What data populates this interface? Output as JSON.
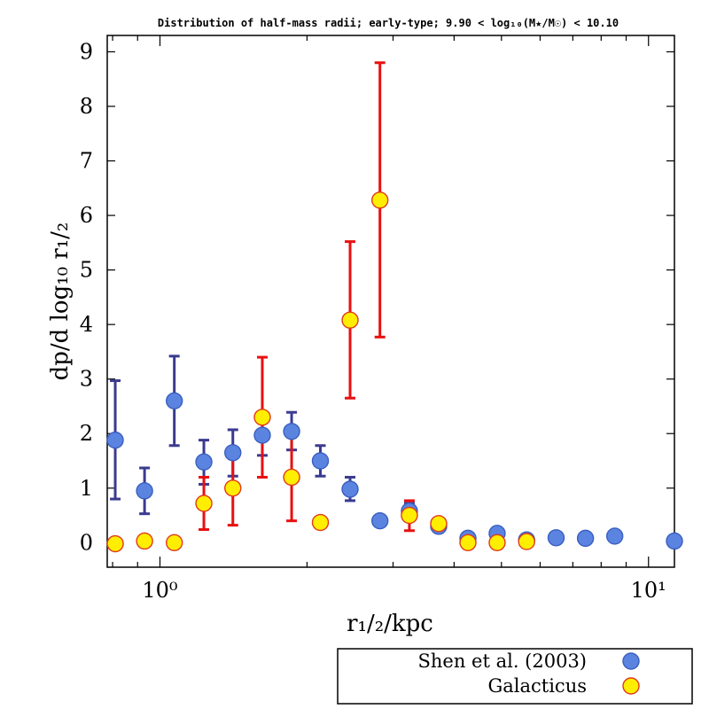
{
  "chart_data": {
    "type": "scatter",
    "title": "Distribution of half-mass radii; early-type; 9.90 < log₁₀(M★/M☉) < 10.10",
    "xlabel": "r₁/₂/kpc",
    "ylabel": "dp/d log₁₀ r₁/₂",
    "xscale": "log",
    "xlim": [
      0.78,
      11.3
    ],
    "ylim": [
      -0.45,
      9.3
    ],
    "x_ticks": [
      {
        "value": 1,
        "label": "10⁰"
      },
      {
        "value": 10,
        "label": "10¹"
      }
    ],
    "y_ticks": [
      0,
      1,
      2,
      3,
      4,
      5,
      6,
      7,
      8,
      9
    ],
    "legend_position": "bottom-right outside",
    "series": [
      {
        "name": "Shen et al. (2003)",
        "marker_color": "#5b84e0",
        "marker_edge": "#3a5fc0",
        "error_color": "#3a3a90",
        "points": [
          {
            "x": 0.81,
            "y": 1.88,
            "lo": 0.8,
            "hi": 2.97
          },
          {
            "x": 0.93,
            "y": 0.95,
            "lo": 0.53,
            "hi": 1.37
          },
          {
            "x": 1.07,
            "y": 2.6,
            "lo": 1.78,
            "hi": 3.42
          },
          {
            "x": 1.23,
            "y": 1.48,
            "lo": 1.07,
            "hi": 1.88
          },
          {
            "x": 1.41,
            "y": 1.65,
            "lo": 1.22,
            "hi": 2.07
          },
          {
            "x": 1.62,
            "y": 1.97,
            "lo": 1.6,
            "hi": 2.37
          },
          {
            "x": 1.86,
            "y": 2.04,
            "lo": 1.7,
            "hi": 2.39
          },
          {
            "x": 2.13,
            "y": 1.5,
            "lo": 1.22,
            "hi": 1.78
          },
          {
            "x": 2.45,
            "y": 0.98,
            "lo": 0.77,
            "hi": 1.2
          },
          {
            "x": 2.82,
            "y": 0.4,
            "lo": 0.3,
            "hi": 0.5
          },
          {
            "x": 3.24,
            "y": 0.58,
            "lo": 0.45,
            "hi": 0.72
          },
          {
            "x": 3.72,
            "y": 0.3,
            "lo": 0.22,
            "hi": 0.38
          },
          {
            "x": 4.27,
            "y": 0.08,
            "lo": 0.04,
            "hi": 0.12
          },
          {
            "x": 4.9,
            "y": 0.17,
            "lo": 0.12,
            "hi": 0.22
          },
          {
            "x": 5.63,
            "y": 0.05,
            "lo": 0.02,
            "hi": 0.08
          },
          {
            "x": 6.47,
            "y": 0.09,
            "lo": 0.06,
            "hi": 0.12
          },
          {
            "x": 7.43,
            "y": 0.08,
            "lo": 0.05,
            "hi": 0.11
          },
          {
            "x": 8.53,
            "y": 0.12,
            "lo": 0.09,
            "hi": 0.15
          },
          {
            "x": 11.3,
            "y": 0.03,
            "lo": 0.01,
            "hi": 0.05
          }
        ]
      },
      {
        "name": "Galacticus",
        "marker_color": "#ffee00",
        "marker_edge": "#e03a1a",
        "error_color": "#e81010",
        "points": [
          {
            "x": 0.81,
            "y": -0.02,
            "lo": -0.02,
            "hi": -0.02
          },
          {
            "x": 0.93,
            "y": 0.03,
            "lo": 0.03,
            "hi": 0.03
          },
          {
            "x": 1.07,
            "y": 0.0,
            "lo": 0.0,
            "hi": 0.0
          },
          {
            "x": 1.23,
            "y": 0.72,
            "lo": 0.24,
            "hi": 1.2
          },
          {
            "x": 1.41,
            "y": 1.0,
            "lo": 0.32,
            "hi": 1.68
          },
          {
            "x": 1.62,
            "y": 2.3,
            "lo": 1.2,
            "hi": 3.4
          },
          {
            "x": 1.86,
            "y": 1.2,
            "lo": 0.4,
            "hi": 1.98
          },
          {
            "x": 2.13,
            "y": 0.37,
            "lo": 0.3,
            "hi": 0.45
          },
          {
            "x": 2.45,
            "y": 4.08,
            "lo": 2.65,
            "hi": 5.52
          },
          {
            "x": 2.82,
            "y": 6.28,
            "lo": 3.77,
            "hi": 8.8
          },
          {
            "x": 3.24,
            "y": 0.5,
            "lo": 0.22,
            "hi": 0.77
          },
          {
            "x": 3.72,
            "y": 0.35,
            "lo": 0.25,
            "hi": 0.45
          },
          {
            "x": 4.27,
            "y": 0.0,
            "lo": 0.0,
            "hi": 0.0
          },
          {
            "x": 4.9,
            "y": 0.0,
            "lo": 0.0,
            "hi": 0.0
          },
          {
            "x": 5.63,
            "y": 0.02,
            "lo": 0.02,
            "hi": 0.02
          }
        ]
      }
    ]
  }
}
